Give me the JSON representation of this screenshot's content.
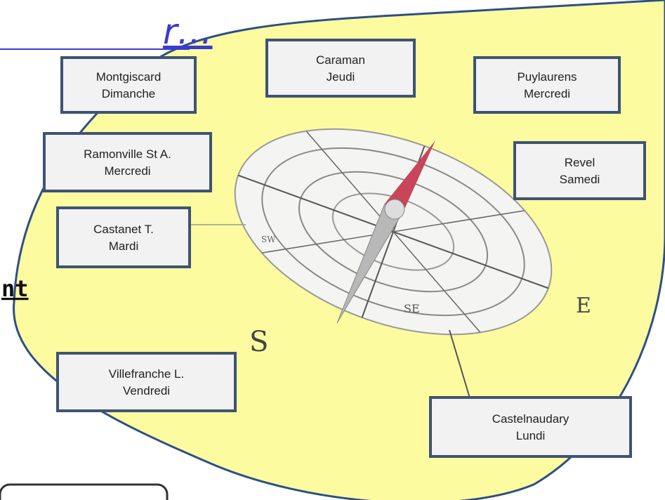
{
  "header": {
    "title_fragment": "r…"
  },
  "side_text": "nt",
  "markets": [
    {
      "town": "Montgiscard",
      "day": "Dimanche"
    },
    {
      "town": "Caraman",
      "day": "Jeudi"
    },
    {
      "town": "Puylaurens",
      "day": "Mercredi"
    },
    {
      "town": "Ramonville St A.",
      "day": "Mercredi"
    },
    {
      "town": "Revel",
      "day": "Samedi"
    },
    {
      "town": "Castanet T.",
      "day": "Mardi"
    },
    {
      "town": "Villefranche L.",
      "day": "Vendredi"
    },
    {
      "town": "Castelnaudary",
      "day": "Lundi"
    }
  ],
  "compass": {
    "labels": [
      "S",
      "SE",
      "E",
      "SW"
    ]
  }
}
